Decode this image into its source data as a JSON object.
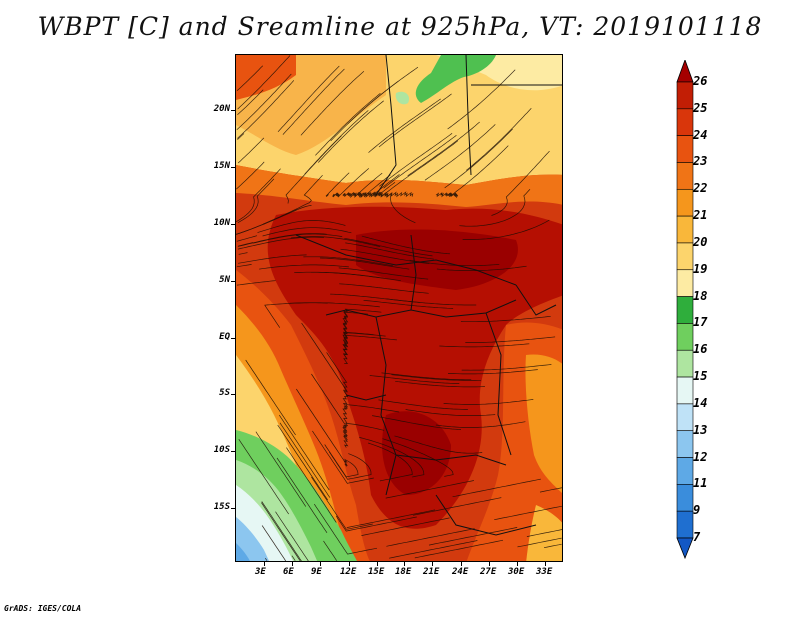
{
  "title": "WBPT [C] and Sreamline at 925hPa, VT: 2019101118",
  "credit": "GrADS: IGES/COLA",
  "lat_labels": [
    "20N",
    "15N",
    "10N",
    "5N",
    "EQ",
    "5S",
    "10S",
    "15S"
  ],
  "lon_labels": [
    "3E",
    "6E",
    "9E",
    "12E",
    "15E",
    "18E",
    "21E",
    "24E",
    "27E",
    "30E",
    "33E"
  ],
  "colorbar": {
    "labels": [
      "26",
      "25",
      "24",
      "23",
      "22",
      "21",
      "20",
      "19",
      "18",
      "17",
      "16",
      "15",
      "14",
      "13",
      "12",
      "11",
      "9",
      "7"
    ],
    "colors": [
      "#a50000",
      "#c21e05",
      "#d9360b",
      "#e85310",
      "#f07416",
      "#f5961c",
      "#f9b73a",
      "#fcd46c",
      "#fdeba3",
      "#2fae3c",
      "#6fcf5e",
      "#aee5a0",
      "#e6f7f4",
      "#bfe2f7",
      "#8cc6ef",
      "#5ea9e6",
      "#3a8ddc",
      "#1f6fd0",
      "#1358c5"
    ]
  }
}
